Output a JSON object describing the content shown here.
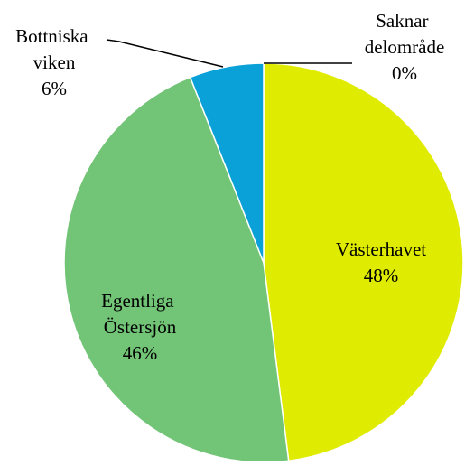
{
  "chart_data": {
    "type": "pie",
    "categories": [
      "Saknar delområde",
      "Västerhavet",
      "Egentliga Östersjön",
      "Bottniska viken"
    ],
    "values": [
      0,
      48,
      46,
      6
    ],
    "value_labels": [
      "0%",
      "48%",
      "46%",
      "6%"
    ],
    "colors": [
      "#4f81bd",
      "#dfeb00",
      "#72c476",
      "#0aa0d8"
    ]
  }
}
